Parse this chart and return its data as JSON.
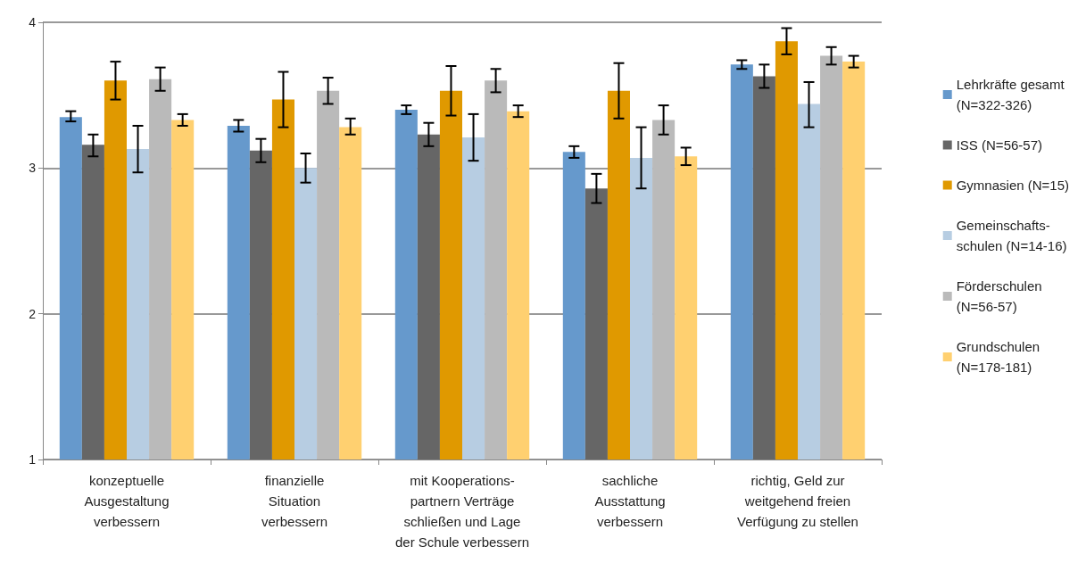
{
  "chart_data": {
    "type": "bar",
    "categories": [
      "konzeptuelle\nAusgestaltung\nverbessern",
      "finanzielle\nSituation\nverbessern",
      "mit Kooperations-\npartnern Verträge\nschließen und Lage\nder Schule verbessern",
      "sachliche\nAusstattung\nverbessern",
      "richtig, Geld zur\nweitgehend freien\nVerfügung zu stellen"
    ],
    "ylim": [
      1,
      4
    ],
    "yticks": [
      1,
      2,
      3,
      4
    ],
    "grid": "y",
    "legend": "right",
    "series": [
      {
        "name": "Lehrkräfte gesamt\n(N=322-326)",
        "color": "#6699cc",
        "values": [
          3.35,
          3.29,
          3.4,
          3.11,
          3.71
        ],
        "errors": [
          [
            3.32,
            3.39
          ],
          [
            3.25,
            3.33
          ],
          [
            3.37,
            3.43
          ],
          [
            3.07,
            3.15
          ],
          [
            3.68,
            3.74
          ]
        ]
      },
      {
        "name": "ISS (N=56-57)",
        "color": "#666666",
        "values": [
          3.16,
          3.12,
          3.23,
          2.86,
          3.63
        ],
        "errors": [
          [
            3.08,
            3.23
          ],
          [
            3.04,
            3.2
          ],
          [
            3.15,
            3.31
          ],
          [
            2.76,
            2.96
          ],
          [
            3.55,
            3.71
          ]
        ]
      },
      {
        "name": "Gymnasien (N=15)",
        "color": "#e09900",
        "values": [
          3.6,
          3.47,
          3.53,
          3.53,
          3.87
        ],
        "errors": [
          [
            3.47,
            3.73
          ],
          [
            3.28,
            3.66
          ],
          [
            3.36,
            3.7
          ],
          [
            3.34,
            3.72
          ],
          [
            3.78,
            3.96
          ]
        ]
      },
      {
        "name": "Gemeinschafts-\nschulen (N=14-16)",
        "color": "#b7cde2",
        "values": [
          3.13,
          3.0,
          3.21,
          3.07,
          3.44
        ],
        "errors": [
          [
            2.97,
            3.29
          ],
          [
            2.9,
            3.1
          ],
          [
            3.05,
            3.37
          ],
          [
            2.86,
            3.28
          ],
          [
            3.28,
            3.59
          ]
        ]
      },
      {
        "name": "Förderschulen\n(N=56-57)",
        "color": "#bababa",
        "values": [
          3.61,
          3.53,
          3.6,
          3.33,
          3.77
        ],
        "errors": [
          [
            3.53,
            3.69
          ],
          [
            3.44,
            3.62
          ],
          [
            3.52,
            3.68
          ],
          [
            3.23,
            3.43
          ],
          [
            3.71,
            3.83
          ]
        ]
      },
      {
        "name": "Grundschulen\n(N=178-181)",
        "color": "#ffd070",
        "values": [
          3.33,
          3.28,
          3.39,
          3.08,
          3.73
        ],
        "errors": [
          [
            3.29,
            3.37
          ],
          [
            3.23,
            3.34
          ],
          [
            3.35,
            3.43
          ],
          [
            3.02,
            3.14
          ],
          [
            3.69,
            3.77
          ]
        ]
      }
    ]
  }
}
